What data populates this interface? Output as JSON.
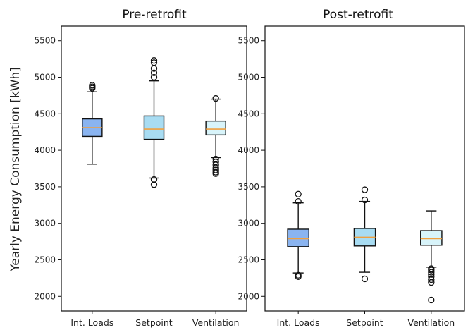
{
  "chart_data": [
    {
      "type": "box",
      "title": "Pre-retrofit",
      "ylabel": "Yearly Energy Consumption [kWh]",
      "xlabel": "",
      "ylim": [
        1800,
        5700
      ],
      "yticks": [
        2000,
        2500,
        3000,
        3500,
        4000,
        4500,
        5000,
        5500
      ],
      "categories": [
        "Int. Loads",
        "Setpoint",
        "Ventilation"
      ],
      "boxes": [
        {
          "name": "Int. Loads",
          "color": "#8ab4f0",
          "whislo": 3810,
          "q1": 4190,
          "med": 4310,
          "q3": 4430,
          "whishi": 4800,
          "fliers": [
            4850,
            4870,
            4890
          ]
        },
        {
          "name": "Setpoint",
          "color": "#a8dcf2",
          "whislo": 3620,
          "q1": 4150,
          "med": 4290,
          "q3": 4470,
          "whishi": 4950,
          "fliers": [
            3600,
            3530,
            5000,
            5060,
            5120,
            5200,
            5230
          ]
        },
        {
          "name": "Ventilation",
          "color": "#d8f4fa",
          "whislo": 3900,
          "q1": 4210,
          "med": 4290,
          "q3": 4400,
          "whishi": 4700,
          "fliers": [
            4710,
            3880,
            3840,
            3800,
            3760,
            3730,
            3700,
            3680
          ]
        }
      ]
    },
    {
      "type": "box",
      "title": "Post-retrofit",
      "ylabel": "",
      "xlabel": "",
      "ylim": [
        1800,
        5700
      ],
      "yticks": [
        2000,
        2500,
        3000,
        3500,
        4000,
        4500,
        5000,
        5500
      ],
      "categories": [
        "Int. Loads",
        "Setpoint",
        "Ventilation"
      ],
      "boxes": [
        {
          "name": "Int. Loads",
          "color": "#8ab4f0",
          "whislo": 2320,
          "q1": 2680,
          "med": 2790,
          "q3": 2920,
          "whishi": 3280,
          "fliers": [
            3300,
            3400,
            2290,
            2270
          ]
        },
        {
          "name": "Setpoint",
          "color": "#a8dcf2",
          "whislo": 2330,
          "q1": 2690,
          "med": 2810,
          "q3": 2930,
          "whishi": 3300,
          "fliers": [
            3320,
            3460,
            2240
          ]
        },
        {
          "name": "Ventilation",
          "color": "#d8f4fa",
          "whislo": 2400,
          "q1": 2700,
          "med": 2790,
          "q3": 2900,
          "whishi": 3170,
          "fliers": [
            2380,
            2360,
            2330,
            2300,
            2270,
            2230,
            2190,
            1950
          ]
        }
      ]
    }
  ],
  "colors": {
    "median": "#f0a040",
    "outline": "#111111",
    "background": "#ffffff"
  }
}
